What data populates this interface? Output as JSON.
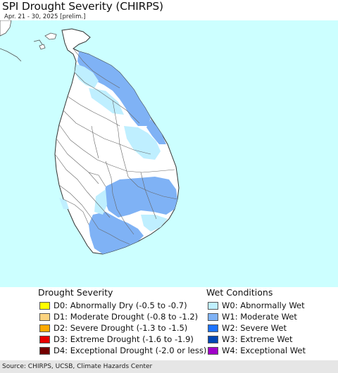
{
  "header": {
    "title": "SPI Drought Severity (CHIRPS)",
    "subtitle": "Apr. 21 - 30, 2025 [prelim.]"
  },
  "map": {
    "region": "Sri Lanka",
    "ocean_color": "#ccffff",
    "land_color": "#ffffff",
    "border_color": "#555555"
  },
  "legend": {
    "drought": {
      "heading": "Drought Severity",
      "items": [
        {
          "label": "D0: Abnormally Dry (-0.5 to -0.7)",
          "color": "#ffff00"
        },
        {
          "label": "D1: Moderate Drought (-0.8 to -1.2)",
          "color": "#fcd37f"
        },
        {
          "label": "D2: Severe Drought (-1.3 to -1.5)",
          "color": "#ffaa00"
        },
        {
          "label": "D3: Extreme Drought (-1.6 to -1.9)",
          "color": "#e60000"
        },
        {
          "label": "D4: Exceptional Drought (-2.0 or less)",
          "color": "#730000"
        }
      ]
    },
    "wet": {
      "heading": "Wet Conditions",
      "items": [
        {
          "label": "W0: Abnormally Wet",
          "color": "#bfefff"
        },
        {
          "label": "W1: Moderate Wet",
          "color": "#7fb2f5"
        },
        {
          "label": "W2: Severe Wet",
          "color": "#1e73ff"
        },
        {
          "label": "W3: Extreme Wet",
          "color": "#0046b4"
        },
        {
          "label": "W4: Exceptional Wet",
          "color": "#a000c8"
        }
      ]
    }
  },
  "footer": {
    "source": "Source: CHIRPS, UCSB, Climate Hazards Center"
  }
}
